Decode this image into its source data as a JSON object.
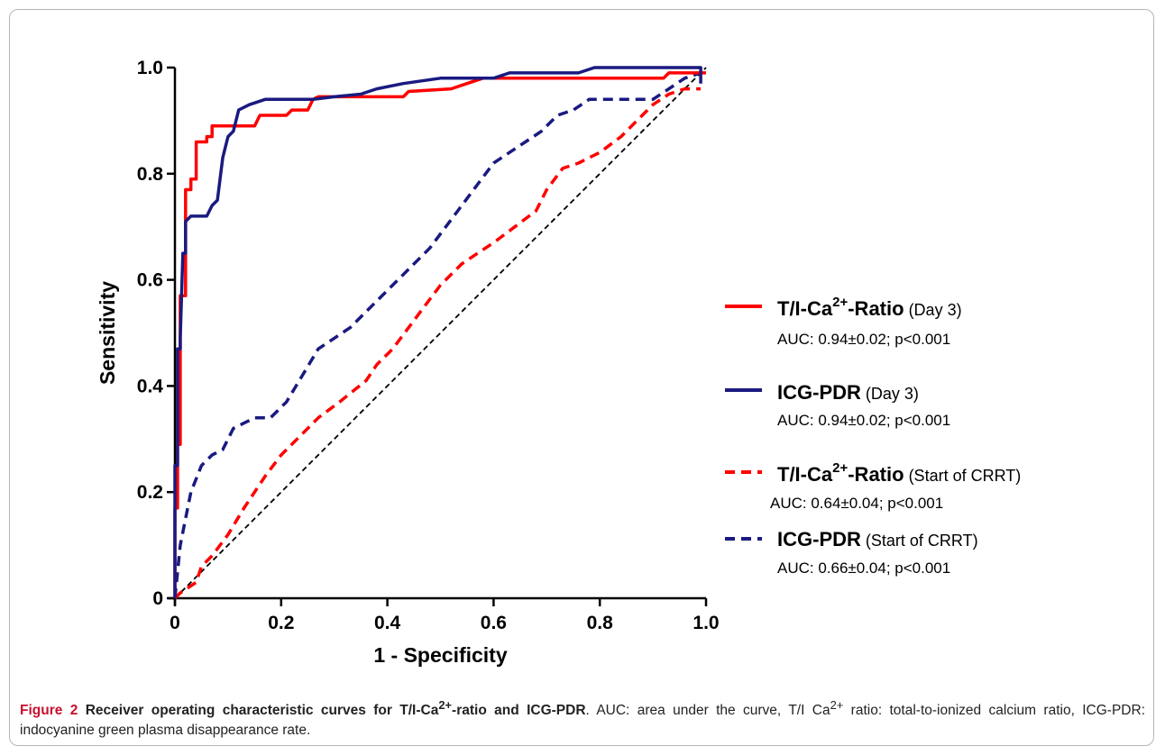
{
  "chart_data": {
    "type": "line",
    "xlabel": "1 - Specificity",
    "ylabel": "Sensitivity",
    "xlim": [
      0,
      1
    ],
    "ylim": [
      0,
      1
    ],
    "xticks": [
      0,
      0.2,
      0.4,
      0.6,
      0.8,
      1.0
    ],
    "xtick_labels": [
      "0",
      "0.2",
      "0.4",
      "0.6",
      "0.8",
      "1.0"
    ],
    "yticks": [
      0,
      0.2,
      0.4,
      0.6,
      0.8,
      1.0
    ],
    "ytick_labels": [
      "0",
      "0.2",
      "0.4",
      "0.6",
      "0.8",
      "1.0"
    ],
    "grid": false,
    "legend_position": "right",
    "reference_line": {
      "style": "dashed",
      "color": "#000000",
      "x": [
        0,
        1
      ],
      "y": [
        0,
        1
      ]
    },
    "series": [
      {
        "name_main": "T/I-Ca",
        "name_sup": "2+",
        "name_tail": "-Ratio",
        "name_detail": "(Day 3)",
        "auc": "AUC: 0.94±0.02; p<0.001",
        "color": "#ff0000",
        "style": "solid",
        "x": [
          0,
          0,
          0.005,
          0.005,
          0.01,
          0.01,
          0.02,
          0.02,
          0.03,
          0.03,
          0.04,
          0.04,
          0.06,
          0.06,
          0.07,
          0.07,
          0.08,
          0.15,
          0.16,
          0.21,
          0.22,
          0.25,
          0.26,
          0.27,
          0.43,
          0.44,
          0.52,
          0.58,
          0.92,
          0.93,
          1.0
        ],
        "y": [
          0,
          0.17,
          0.17,
          0.29,
          0.29,
          0.57,
          0.57,
          0.77,
          0.77,
          0.79,
          0.79,
          0.86,
          0.86,
          0.87,
          0.87,
          0.89,
          0.89,
          0.89,
          0.91,
          0.91,
          0.92,
          0.92,
          0.94,
          0.945,
          0.945,
          0.955,
          0.96,
          0.98,
          0.98,
          0.99,
          0.99
        ]
      },
      {
        "name_main": "ICG-PDR",
        "name_sup": "",
        "name_tail": "",
        "name_detail": "(Day 3)",
        "auc": "AUC: 0.94±0.02; p<0.001",
        "color": "#1a1a80",
        "style": "solid",
        "x": [
          0,
          0,
          0.005,
          0.005,
          0.01,
          0.01,
          0.015,
          0.02,
          0.02,
          0.03,
          0.06,
          0.07,
          0.08,
          0.09,
          0.1,
          0.11,
          0.12,
          0.14,
          0.17,
          0.26,
          0.3,
          0.35,
          0.38,
          0.43,
          0.5,
          0.6,
          0.63,
          0.76,
          0.79,
          0.99,
          0.99
        ],
        "y": [
          0,
          0.25,
          0.25,
          0.47,
          0.47,
          0.49,
          0.65,
          0.65,
          0.71,
          0.72,
          0.72,
          0.74,
          0.75,
          0.83,
          0.87,
          0.88,
          0.92,
          0.93,
          0.94,
          0.94,
          0.945,
          0.95,
          0.96,
          0.97,
          0.98,
          0.98,
          0.99,
          0.99,
          1.0,
          1.0,
          0.97
        ]
      },
      {
        "name_main": "T/I-Ca",
        "name_sup": "2+",
        "name_tail": "-Ratio",
        "name_detail": "(Start of CRRT)",
        "auc": "AUC: 0.64±0.04; p<0.001",
        "color": "#ff0000",
        "style": "dashed",
        "x": [
          0,
          0.01,
          0.04,
          0.05,
          0.07,
          0.1,
          0.13,
          0.17,
          0.2,
          0.24,
          0.27,
          0.31,
          0.36,
          0.38,
          0.41,
          0.44,
          0.47,
          0.5,
          0.54,
          0.57,
          0.6,
          0.64,
          0.68,
          0.7,
          0.73,
          0.76,
          0.8,
          0.84,
          0.87,
          0.9,
          0.93,
          0.96,
          0.99
        ],
        "y": [
          0,
          0.01,
          0.03,
          0.06,
          0.08,
          0.12,
          0.17,
          0.23,
          0.27,
          0.31,
          0.34,
          0.37,
          0.41,
          0.44,
          0.47,
          0.51,
          0.55,
          0.59,
          0.63,
          0.65,
          0.67,
          0.7,
          0.73,
          0.77,
          0.81,
          0.82,
          0.84,
          0.87,
          0.9,
          0.93,
          0.95,
          0.96,
          0.96
        ]
      },
      {
        "name_main": "ICG-PDR",
        "name_sup": "",
        "name_tail": "",
        "name_detail": "(Start of CRRT)",
        "auc": "AUC: 0.66±0.04; p<0.001",
        "color": "#1a1a80",
        "style": "dashed",
        "x": [
          0,
          0.01,
          0.02,
          0.03,
          0.05,
          0.07,
          0.09,
          0.11,
          0.13,
          0.15,
          0.18,
          0.21,
          0.24,
          0.27,
          0.3,
          0.33,
          0.36,
          0.39,
          0.42,
          0.45,
          0.48,
          0.51,
          0.54,
          0.57,
          0.6,
          0.63,
          0.66,
          0.69,
          0.72,
          0.75,
          0.78,
          0.82,
          0.86,
          0.9,
          0.93,
          0.96,
          0.99
        ],
        "y": [
          0,
          0.1,
          0.15,
          0.2,
          0.25,
          0.27,
          0.28,
          0.32,
          0.33,
          0.34,
          0.34,
          0.37,
          0.42,
          0.47,
          0.49,
          0.51,
          0.54,
          0.57,
          0.6,
          0.63,
          0.66,
          0.7,
          0.74,
          0.78,
          0.82,
          0.84,
          0.86,
          0.88,
          0.91,
          0.92,
          0.94,
          0.94,
          0.94,
          0.94,
          0.96,
          0.98,
          0.99
        ]
      }
    ]
  },
  "caption": {
    "fig_label": "Figure 2",
    "title_main": "Receiver operating characteristic curves for T/I-Ca",
    "title_sup": "2+",
    "title_tail": "-ratio and ICG-PDR",
    "text1": ". AUC: area under the curve, T/I Ca",
    "text1_sup": "2+",
    "text2": " ratio: total-to-ionized calcium ratio, ICG-PDR: indocyanine green plasma disappearance rate."
  }
}
